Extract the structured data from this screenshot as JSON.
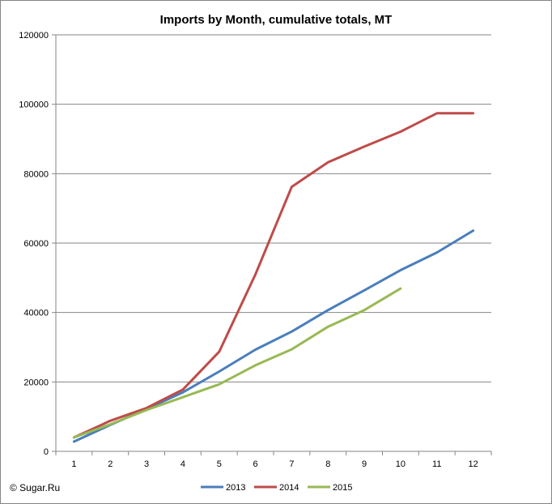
{
  "chart_data": {
    "type": "line",
    "title": "Imports by Month, cumulative totals, MT",
    "xlabel": "",
    "ylabel": "",
    "x": [
      1,
      2,
      3,
      4,
      5,
      6,
      7,
      8,
      9,
      10,
      11,
      12
    ],
    "x_tick_labels": [
      "1",
      "2",
      "3",
      "4",
      "5",
      "6",
      "7",
      "8",
      "9",
      "10",
      "11",
      "12"
    ],
    "ylim": [
      0,
      120000
    ],
    "y_ticks": [
      0,
      20000,
      40000,
      60000,
      80000,
      100000,
      120000
    ],
    "y_tick_labels": [
      "0",
      "20000",
      "40000",
      "60000",
      "80000",
      "100000",
      "120000"
    ],
    "grid": "horizontal",
    "legend_position": "bottom",
    "series": [
      {
        "name": "2013",
        "color": "#4a7ebb",
        "values": [
          2800,
          7600,
          12200,
          17000,
          23000,
          29300,
          34500,
          40700,
          46400,
          52200,
          57300,
          63600
        ]
      },
      {
        "name": "2014",
        "color": "#be4b48",
        "values": [
          4000,
          8800,
          12500,
          17800,
          28700,
          51000,
          76200,
          83300,
          87800,
          92100,
          97400,
          97400
        ]
      },
      {
        "name": "2015",
        "color": "#98b954",
        "values": [
          4000,
          7800,
          11900,
          15600,
          19300,
          24800,
          29400,
          35900,
          40700,
          46900,
          null,
          null
        ]
      }
    ]
  },
  "copyright": "© Sugar.Ru"
}
